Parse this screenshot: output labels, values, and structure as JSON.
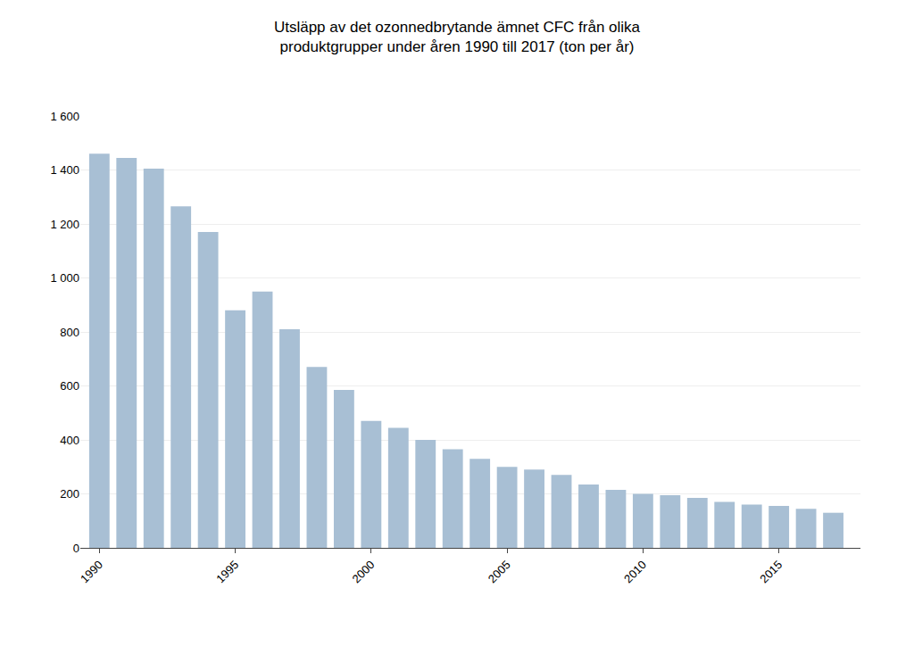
{
  "chart_data": {
    "type": "bar",
    "title": "Utsläpp av det ozonnedbrytande ämnet CFC från olika\nproduktgrupper under åren 1990 till 2017 (ton per år)",
    "x": [
      1990,
      1991,
      1992,
      1993,
      1994,
      1995,
      1996,
      1997,
      1998,
      1999,
      2000,
      2001,
      2002,
      2003,
      2004,
      2005,
      2006,
      2007,
      2008,
      2009,
      2010,
      2011,
      2012,
      2013,
      2014,
      2015,
      2016,
      2017
    ],
    "values": [
      1460,
      1445,
      1405,
      1265,
      1170,
      880,
      950,
      810,
      670,
      585,
      470,
      445,
      400,
      365,
      330,
      300,
      290,
      270,
      235,
      215,
      200,
      195,
      185,
      170,
      160,
      155,
      145,
      130
    ],
    "color": "#a8bfd4",
    "xlim": [
      1989.3,
      2018.0
    ],
    "xticks": [
      1990,
      1995,
      2000,
      2005,
      2010,
      2015
    ],
    "ylim": [
      0,
      1600
    ],
    "yticks": [
      0,
      200,
      400,
      600,
      800,
      {
        "value": 1000,
        "label": "1 000"
      },
      {
        "value": 1200,
        "label": "1 200"
      },
      {
        "value": 1400,
        "label": "1 400"
      },
      {
        "value": 1600,
        "label": "1 600"
      }
    ],
    "grid": true
  }
}
